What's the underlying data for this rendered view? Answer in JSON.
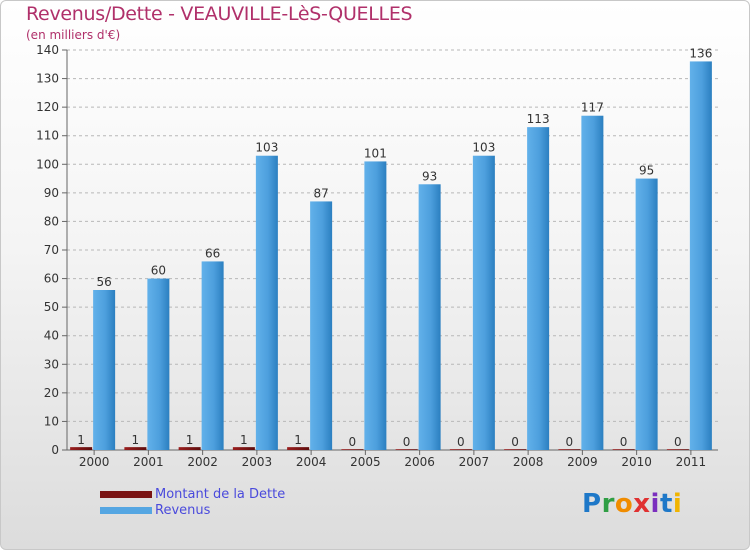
{
  "header": {
    "title": "Revenus/Dette - VEAUVILLE-LèS-QUELLES",
    "subtitle": "(en milliers d'€)"
  },
  "logo": {
    "letters": [
      "P",
      "r",
      "o",
      "x",
      "i",
      "t",
      "i"
    ]
  },
  "colors": {
    "title": "#b0306a",
    "dette": "#7a1414",
    "revenus": "#55a6e2",
    "revenus_dark": "#2b7fc0",
    "legend_text": "#4a4adc"
  },
  "chart_data": {
    "type": "bar",
    "title": "Revenus/Dette - VEAUVILLE-LèS-QUELLES",
    "ylabel": "(en milliers d'€)",
    "xlabel": "",
    "ylim": [
      0,
      140
    ],
    "yticks": [
      0,
      10,
      20,
      30,
      40,
      50,
      60,
      70,
      80,
      90,
      100,
      110,
      120,
      130,
      140
    ],
    "grid": "horizontal dashed",
    "legend_position": "bottom-left",
    "categories": [
      "2000",
      "2001",
      "2002",
      "2003",
      "2004",
      "2005",
      "2006",
      "2007",
      "2008",
      "2009",
      "2010",
      "2011"
    ],
    "series": [
      {
        "name": "Montant de la Dette",
        "values": [
          1,
          1,
          1,
          1,
          1,
          0,
          0,
          0,
          0,
          0,
          0,
          0
        ]
      },
      {
        "name": "Revenus",
        "values": [
          56,
          60,
          66,
          103,
          87,
          101,
          93,
          103,
          113,
          117,
          95,
          136
        ]
      }
    ]
  }
}
